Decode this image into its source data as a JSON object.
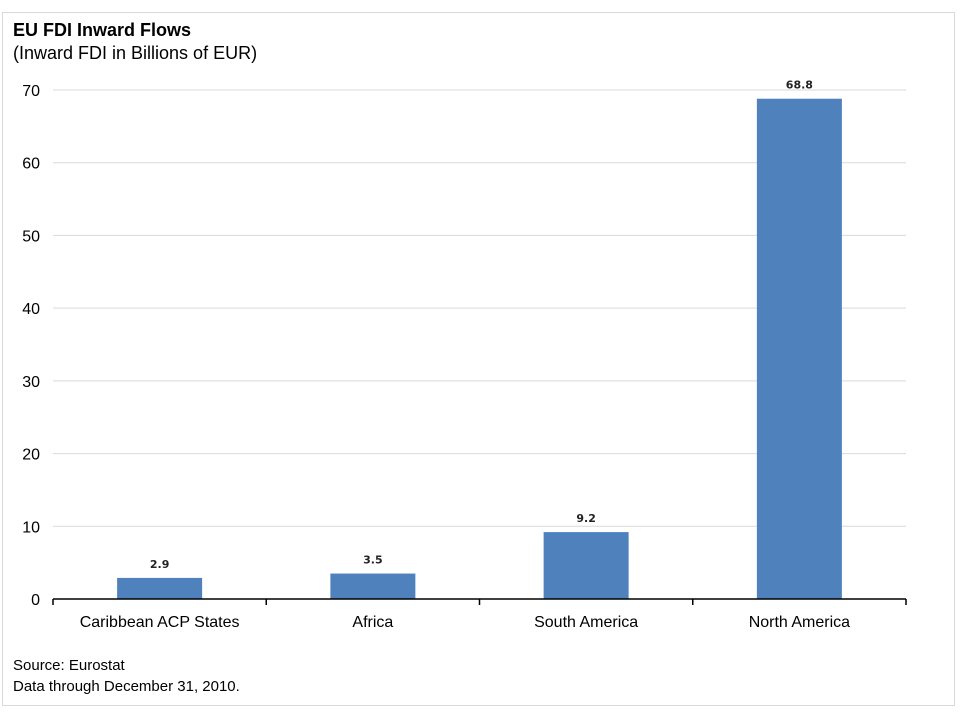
{
  "chart_data": {
    "type": "bar",
    "title": "EU FDI Inward Flows",
    "subtitle": "(Inward FDI in Billions of EUR)",
    "categories": [
      "Caribbean ACP States",
      "Africa",
      "South America",
      "North America"
    ],
    "values": [
      2.9,
      3.5,
      9.2,
      68.8
    ],
    "data_labels": [
      "2.9",
      "3.5",
      "9.2",
      "68.8"
    ],
    "ylim": [
      0,
      70
    ],
    "yticks": [
      0,
      10,
      20,
      30,
      40,
      50,
      60,
      70
    ],
    "grid": true,
    "legend": "none",
    "xlabel": "",
    "ylabel": "",
    "bar_color": "#4f81bd",
    "grid_color": "#d9d9d9"
  },
  "footer": {
    "source": "Source: Eurostat",
    "note": "Data through December 31, 2010."
  }
}
